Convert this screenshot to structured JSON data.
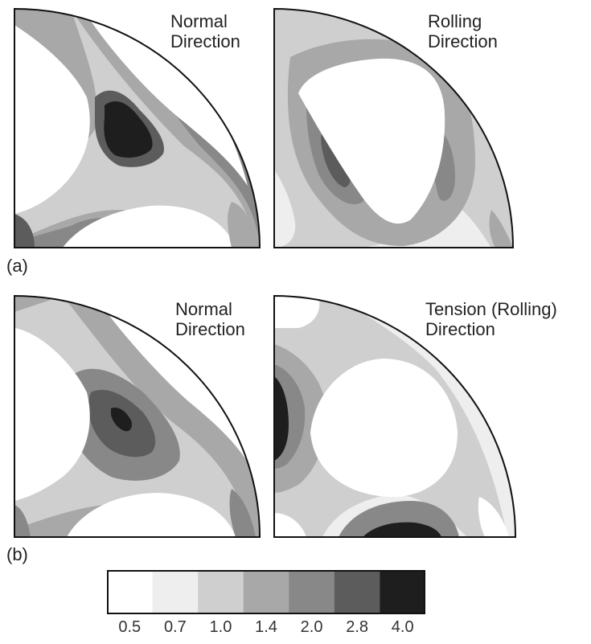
{
  "rows": [
    {
      "label": "(a)",
      "panels": [
        {
          "title_lines": [
            "Normal",
            "Direction"
          ]
        },
        {
          "title_lines": [
            "Rolling",
            "Direction"
          ]
        }
      ]
    },
    {
      "label": "(b)",
      "panels": [
        {
          "title_lines": [
            "Normal",
            "Direction"
          ]
        },
        {
          "title_lines": [
            "Tension (Rolling)",
            "Direction"
          ]
        }
      ]
    }
  ],
  "legend": {
    "levels": [
      "0.5",
      "0.7",
      "1.0",
      "1.4",
      "2.0",
      "2.8",
      "4.0"
    ],
    "colors": [
      "#ffffff",
      "#eeeeee",
      "#cfcfcf",
      "#a8a8a8",
      "#888888",
      "#5c5c5c",
      "#1e1e1e"
    ]
  }
}
